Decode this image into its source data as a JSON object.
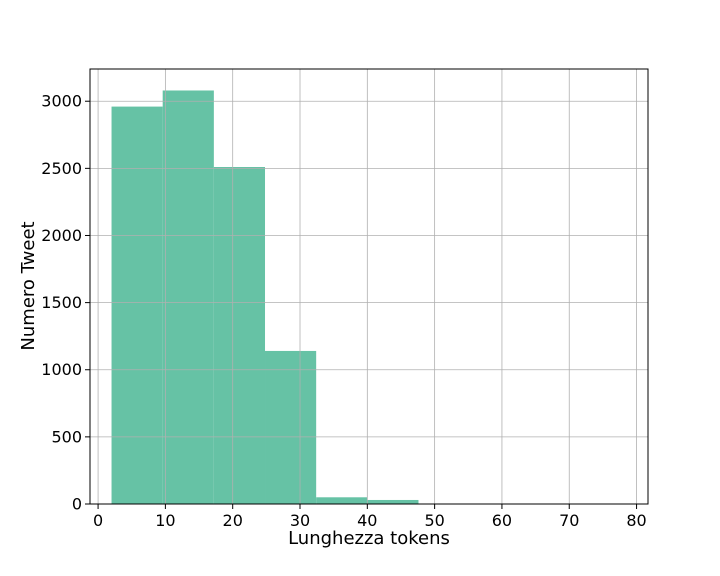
{
  "chart_data": {
    "type": "bar",
    "title": "",
    "xlabel": "Lunghezza tokens",
    "ylabel": "Numero Tweet",
    "xlim": [
      -1.2,
      81.7
    ],
    "ylim": [
      0,
      3240
    ],
    "xticks": [
      0,
      10,
      20,
      30,
      40,
      50,
      60,
      70,
      80
    ],
    "yticks": [
      0,
      500,
      1000,
      1500,
      2000,
      2500,
      3000
    ],
    "grid": true,
    "bins": [
      {
        "x0": 2.0,
        "x1": 9.6,
        "value": 2960
      },
      {
        "x0": 9.6,
        "x1": 17.2,
        "value": 3080
      },
      {
        "x0": 17.2,
        "x1": 24.8,
        "value": 2510
      },
      {
        "x0": 24.8,
        "x1": 32.4,
        "value": 1140
      },
      {
        "x0": 32.4,
        "x1": 40.0,
        "value": 50
      },
      {
        "x0": 40.0,
        "x1": 47.6,
        "value": 30
      },
      {
        "x0": 47.6,
        "x1": 55.2,
        "value": 0
      },
      {
        "x0": 55.2,
        "x1": 62.8,
        "value": 0
      },
      {
        "x0": 62.8,
        "x1": 70.4,
        "value": 0
      },
      {
        "x0": 70.4,
        "x1": 78.0,
        "value": 0
      }
    ],
    "colors": {
      "bar": "#66c2a5",
      "grid": "#b0b0b0",
      "axis": "#000000"
    }
  }
}
